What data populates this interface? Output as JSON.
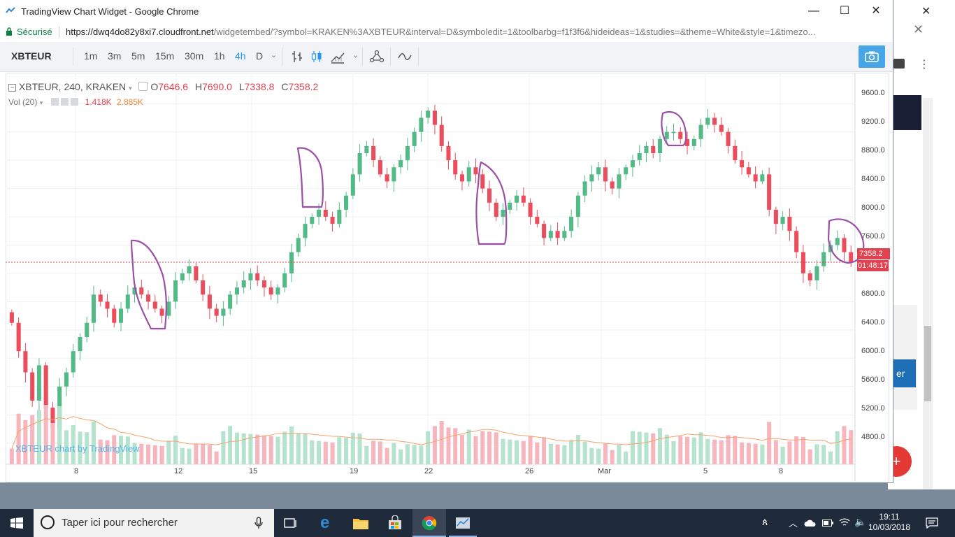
{
  "browser": {
    "window_title": "TradingView Chart Widget - Google Chrome",
    "secure_label": "Sécurisé",
    "url_host": "https://dwq4do82y8xi7.cloudfront.net",
    "url_path": "/widgetembed/?symbol=KRAKEN%3AXBTEUR&interval=D&symboledit=1&toolbarbg=f1f3f6&hideideas=1&studies=&theme=White&style=1&timezo..."
  },
  "toolbar": {
    "symbol": "XBTEUR",
    "intervals": [
      "1m",
      "3m",
      "5m",
      "15m",
      "30m",
      "1h",
      "4h",
      "D"
    ],
    "active_interval": "4h",
    "icons": [
      "bar-style-icon",
      "candle-style-icon",
      "compare-icon",
      "indicators-icon",
      "drawing-icon",
      "camera-icon"
    ]
  },
  "legend": {
    "title": "XBTEUR, 240, KRAKEN",
    "open_label": "O",
    "open": "7646.6",
    "high_label": "H",
    "high": "7690.0",
    "low_label": "L",
    "low": "7338.8",
    "close_label": "C",
    "close": "7358.2",
    "vol_label": "Vol (20)",
    "vol_value": "1.418K",
    "vol_ma": "2.885K"
  },
  "price_tag": "7358.2",
  "countdown_tag": "01:48:17",
  "watermark": "XBTEUR chart by TradingView",
  "colors": {
    "up": "#53b987",
    "down": "#eb4d5c",
    "up_vol": "#b5e3cd",
    "down_vol": "#f7b6bd",
    "annotation": "#9b4fa6",
    "accent": "#2196f3"
  },
  "chart_data": {
    "type": "candlestick",
    "y_axis_labels": [
      "9600.0",
      "9200.0",
      "8800.0",
      "8400.0",
      "8000.0",
      "7600.0",
      "6800.0",
      "6400.0",
      "6000.0",
      "5600.0",
      "5200.0",
      "4800.0"
    ],
    "x_axis_labels": [
      "8",
      "12",
      "15",
      "19",
      "22",
      "26",
      "Mar",
      "5",
      "8"
    ],
    "ylim": [
      4500,
      9800
    ],
    "close_series": [
      6500,
      6100,
      5800,
      5400,
      5900,
      5300,
      5000,
      5600,
      5800,
      6100,
      6300,
      6500,
      6900,
      6800,
      6700,
      6500,
      6700,
      6900,
      7000,
      6900,
      6800,
      6700,
      6600,
      6800,
      7100,
      7200,
      7300,
      7100,
      6900,
      6700,
      6600,
      6700,
      6900,
      7000,
      7100,
      7200,
      7100,
      7000,
      6900,
      7000,
      7200,
      7500,
      7700,
      7900,
      8000,
      8100,
      8000,
      7900,
      8100,
      8300,
      8600,
      8900,
      9000,
      8800,
      8600,
      8500,
      8700,
      8800,
      9000,
      9200,
      9400,
      9500,
      9300,
      9000,
      8800,
      8600,
      8500,
      8700,
      8600,
      8400,
      8200,
      8000,
      8100,
      8200,
      8300,
      8200,
      8000,
      7900,
      7700,
      7800,
      7700,
      7800,
      8000,
      8300,
      8500,
      8600,
      8700,
      8500,
      8400,
      8600,
      8700,
      8800,
      8900,
      9000,
      8900,
      9100,
      9200,
      9200,
      9100,
      9000,
      9100,
      9300,
      9400,
      9300,
      9200,
      9000,
      8800,
      8700,
      8600,
      8500,
      8600,
      8100,
      7900,
      8000,
      7800,
      7500,
      7200,
      7100,
      7300,
      7500,
      7600,
      7700,
      7500,
      7358
    ],
    "annotations": "Hand-drawn purple outlines around six price clusters"
  },
  "taskbar": {
    "search_placeholder": "Taper ici pour rechercher",
    "time": "19:11",
    "date": "10/03/2018"
  },
  "background_window": {
    "button_fragment": "er"
  }
}
